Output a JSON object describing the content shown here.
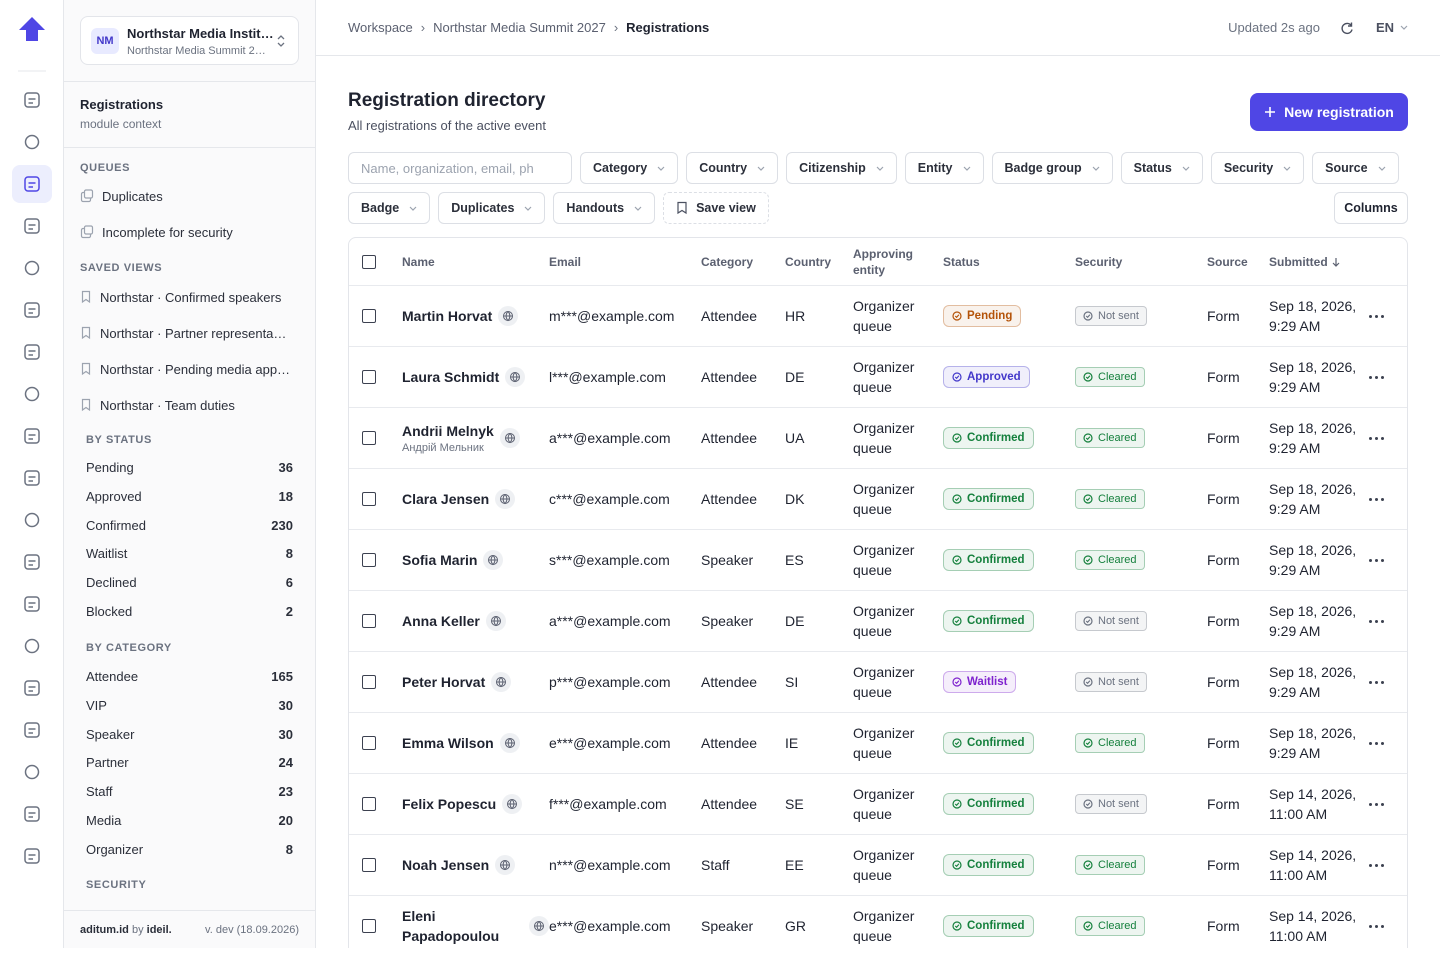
{
  "workspace": {
    "org_badge": "NM",
    "org_name": "Northstar Media Instit…",
    "event_name": "Northstar Media Summit 2…"
  },
  "sidebar": {
    "context_title": "Registrations",
    "context_subtitle": "module context",
    "queues_heading": "QUEUES",
    "queues": [
      "Duplicates",
      "Incomplete for security"
    ],
    "saved_views_heading": "SAVED VIEWS",
    "saved_views": [
      "Northstar · Confirmed speakers",
      "Northstar · Partner representa…",
      "Northstar · Pending media app…",
      "Northstar · Team duties"
    ],
    "by_status_heading": "BY STATUS",
    "by_status": [
      {
        "label": "Pending",
        "count": 36
      },
      {
        "label": "Approved",
        "count": 18
      },
      {
        "label": "Confirmed",
        "count": 230
      },
      {
        "label": "Waitlist",
        "count": 8
      },
      {
        "label": "Declined",
        "count": 6
      },
      {
        "label": "Blocked",
        "count": 2
      }
    ],
    "by_category_heading": "BY CATEGORY",
    "by_category": [
      {
        "label": "Attendee",
        "count": 165
      },
      {
        "label": "VIP",
        "count": 30
      },
      {
        "label": "Speaker",
        "count": 30
      },
      {
        "label": "Partner",
        "count": 24
      },
      {
        "label": "Staff",
        "count": 23
      },
      {
        "label": "Media",
        "count": 20
      },
      {
        "label": "Organizer",
        "count": 8
      }
    ],
    "security_heading": "SECURITY",
    "footer": {
      "brand": "aditum.id",
      "by": "by",
      "maker": "ideil.",
      "version": "v. dev (18.09.2026)"
    }
  },
  "topbar": {
    "breadcrumbs": [
      "Workspace",
      "Northstar Media Summit 2027",
      "Registrations"
    ],
    "updated": "Updated 2s ago",
    "language": "EN"
  },
  "page": {
    "title": "Registration directory",
    "subtitle": "All registrations of the active event",
    "new_button": "New registration",
    "search_placeholder": "Name, organization, email, ph",
    "filters": [
      "Category",
      "Country",
      "Citizenship",
      "Entity",
      "Badge group",
      "Status",
      "Security",
      "Source",
      "Badge",
      "Duplicates",
      "Handouts"
    ],
    "save_view": "Save view",
    "columns_button": "Columns"
  },
  "table": {
    "headers": [
      "Name",
      "Email",
      "Category",
      "Country",
      "Approving entity",
      "Status",
      "Security",
      "Source",
      "Submitted"
    ],
    "rows": [
      {
        "name": "Martin Horvat",
        "email": "m***@example.com",
        "category": "Attendee",
        "country": "HR",
        "entity": "Organizer queue",
        "status": {
          "label": "Pending",
          "color": "#b45309"
        },
        "security": {
          "label": "Not sent",
          "color": "#6b7280"
        },
        "source": "Form",
        "submitted": "Sep 18, 2026, 9:29 AM"
      },
      {
        "name": "Laura Schmidt",
        "email": "l***@example.com",
        "category": "Attendee",
        "country": "DE",
        "entity": "Organizer queue",
        "status": {
          "label": "Approved",
          "color": "#4338ca"
        },
        "security": {
          "label": "Cleared",
          "color": "#15803d"
        },
        "source": "Form",
        "submitted": "Sep 18, 2026, 9:29 AM"
      },
      {
        "name": "Andrii Melnyk",
        "subname": "Андрій Мельник",
        "email": "a***@example.com",
        "category": "Attendee",
        "country": "UA",
        "entity": "Organizer queue",
        "status": {
          "label": "Confirmed",
          "color": "#15803d"
        },
        "security": {
          "label": "Cleared",
          "color": "#15803d"
        },
        "source": "Form",
        "submitted": "Sep 18, 2026, 9:29 AM"
      },
      {
        "name": "Clara Jensen",
        "email": "c***@example.com",
        "category": "Attendee",
        "country": "DK",
        "entity": "Organizer queue",
        "status": {
          "label": "Confirmed",
          "color": "#15803d"
        },
        "security": {
          "label": "Cleared",
          "color": "#15803d"
        },
        "source": "Form",
        "submitted": "Sep 18, 2026, 9:29 AM"
      },
      {
        "name": "Sofia Marin",
        "email": "s***@example.com",
        "category": "Speaker",
        "country": "ES",
        "entity": "Organizer queue",
        "status": {
          "label": "Confirmed",
          "color": "#15803d"
        },
        "security": {
          "label": "Cleared",
          "color": "#15803d"
        },
        "source": "Form",
        "submitted": "Sep 18, 2026, 9:29 AM"
      },
      {
        "name": "Anna Keller",
        "email": "a***@example.com",
        "category": "Speaker",
        "country": "DE",
        "entity": "Organizer queue",
        "status": {
          "label": "Confirmed",
          "color": "#15803d"
        },
        "security": {
          "label": "Not sent",
          "color": "#6b7280"
        },
        "source": "Form",
        "submitted": "Sep 18, 2026, 9:29 AM"
      },
      {
        "name": "Peter Horvat",
        "email": "p***@example.com",
        "category": "Attendee",
        "country": "SI",
        "entity": "Organizer queue",
        "status": {
          "label": "Waitlist",
          "color": "#7e22ce"
        },
        "security": {
          "label": "Not sent",
          "color": "#6b7280"
        },
        "source": "Form",
        "submitted": "Sep 18, 2026, 9:29 AM"
      },
      {
        "name": "Emma Wilson",
        "email": "e***@example.com",
        "category": "Attendee",
        "country": "IE",
        "entity": "Organizer queue",
        "status": {
          "label": "Confirmed",
          "color": "#15803d"
        },
        "security": {
          "label": "Cleared",
          "color": "#15803d"
        },
        "source": "Form",
        "submitted": "Sep 18, 2026, 9:29 AM"
      },
      {
        "name": "Felix Popescu",
        "email": "f***@example.com",
        "category": "Attendee",
        "country": "SE",
        "entity": "Organizer queue",
        "status": {
          "label": "Confirmed",
          "color": "#15803d"
        },
        "security": {
          "label": "Not sent",
          "color": "#6b7280"
        },
        "source": "Form",
        "submitted": "Sep 14, 2026, 11:00 AM"
      },
      {
        "name": "Noah Jensen",
        "email": "n***@example.com",
        "category": "Staff",
        "country": "EE",
        "entity": "Organizer queue",
        "status": {
          "label": "Confirmed",
          "color": "#15803d"
        },
        "security": {
          "label": "Cleared",
          "color": "#15803d"
        },
        "source": "Form",
        "submitted": "Sep 14, 2026, 11:00 AM"
      },
      {
        "name": "Eleni Papadopoulou",
        "email": "e***@example.com",
        "category": "Speaker",
        "country": "GR",
        "entity": "Organizer queue",
        "status": {
          "label": "Confirmed",
          "color": "#15803d"
        },
        "security": {
          "label": "Cleared",
          "color": "#15803d"
        },
        "source": "Form",
        "submitted": "Sep 14, 2026, 11:00 AM"
      }
    ]
  }
}
